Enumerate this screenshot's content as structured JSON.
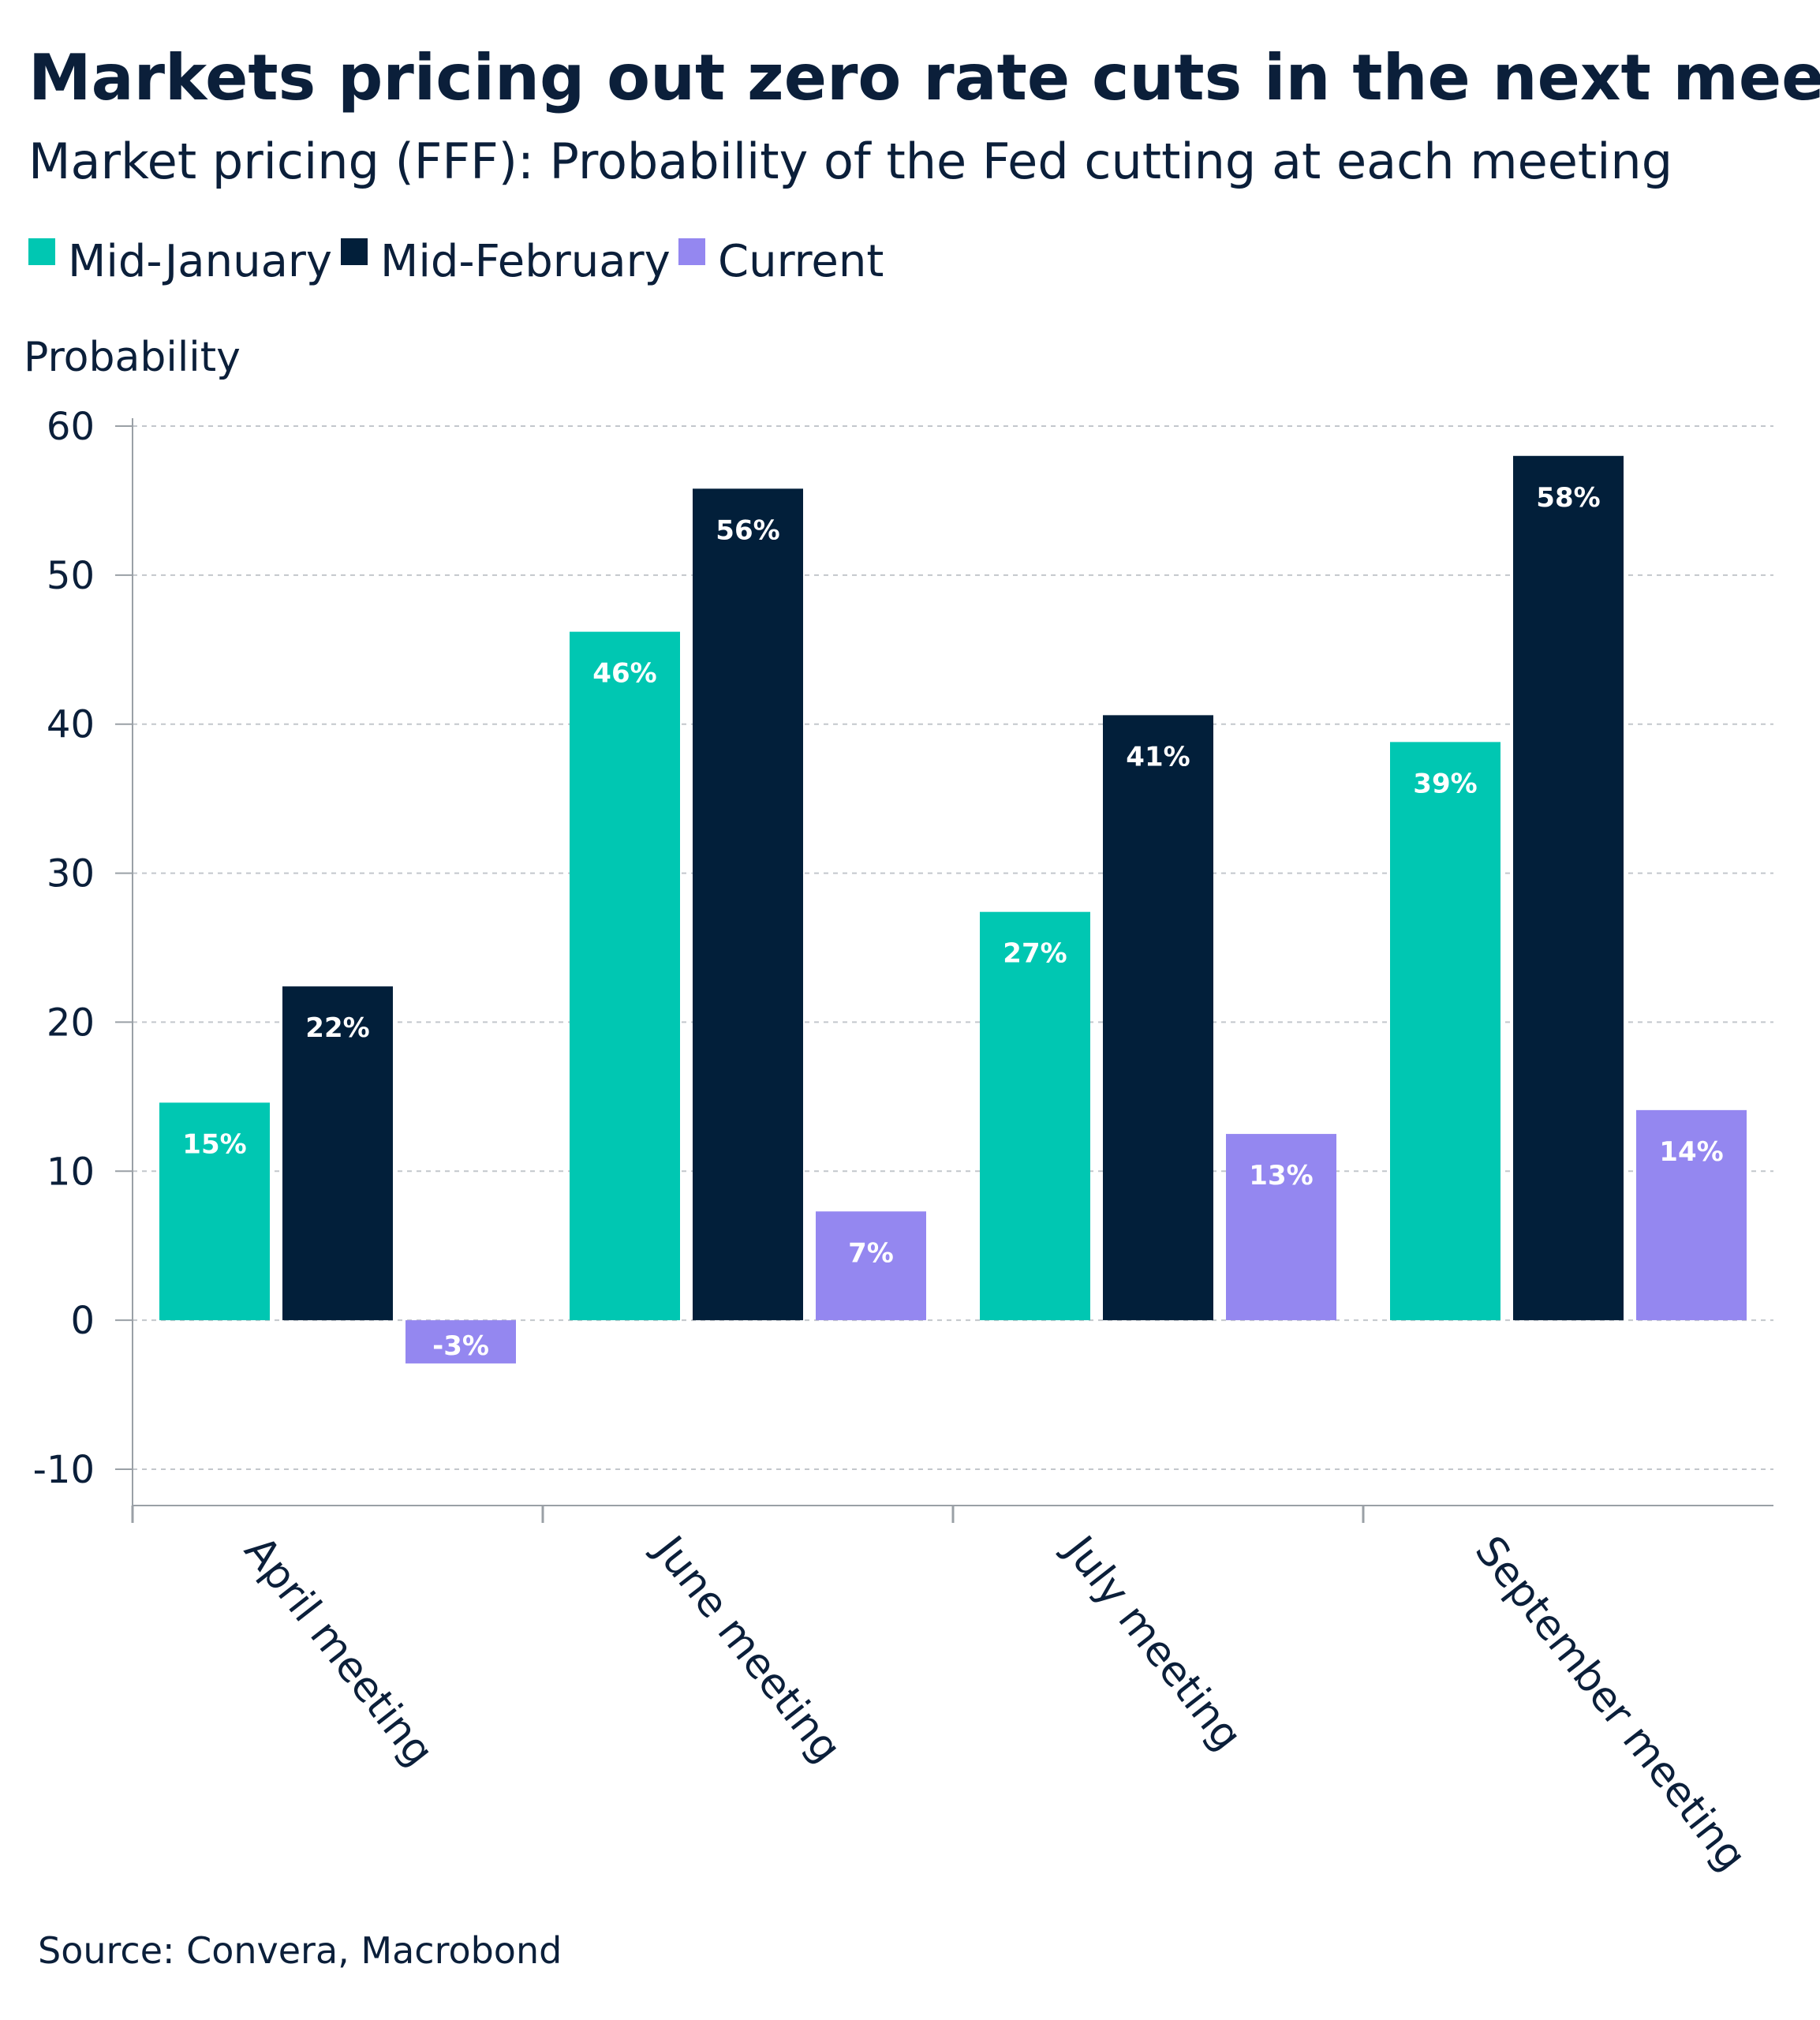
{
  "colors": {
    "mid_january": "#00c7b2",
    "mid_february": "#021f3a",
    "current": "#9487f0",
    "text": "#0b1f3a",
    "grid": "#c3c7cc",
    "axis": "#9aa0a6"
  },
  "chart_data": {
    "type": "bar",
    "title": "Markets pricing out zero rate cuts in the next meetings",
    "subtitle": "Market pricing (FFF): Probability of the Fed cutting at each meeting",
    "ylabel": "Probability",
    "xlabel": "",
    "ylim": [
      -10,
      60
    ],
    "yticks": [
      60,
      50,
      40,
      30,
      20,
      10,
      0,
      -10
    ],
    "grid": true,
    "legend_position": "top-left",
    "categories": [
      "April meeting",
      "June meeting",
      "July meeting",
      "September meeting"
    ],
    "series": [
      {
        "name": "Mid-January",
        "color": "#00c7b2",
        "values": [
          14.6,
          46.2,
          27.4,
          38.8
        ],
        "labels": [
          "15%",
          "46%",
          "27%",
          "39%"
        ]
      },
      {
        "name": "Mid-February",
        "color": "#021f3a",
        "values": [
          22.4,
          55.8,
          40.6,
          58.0
        ],
        "labels": [
          "22%",
          "56%",
          "41%",
          "58%"
        ]
      },
      {
        "name": "Current",
        "color": "#9487f0",
        "values": [
          -2.9,
          7.3,
          12.5,
          14.1
        ],
        "labels": [
          "-3%",
          "7%",
          "13%",
          "14%"
        ]
      }
    ],
    "source": "Source: Convera, Macrobond"
  }
}
